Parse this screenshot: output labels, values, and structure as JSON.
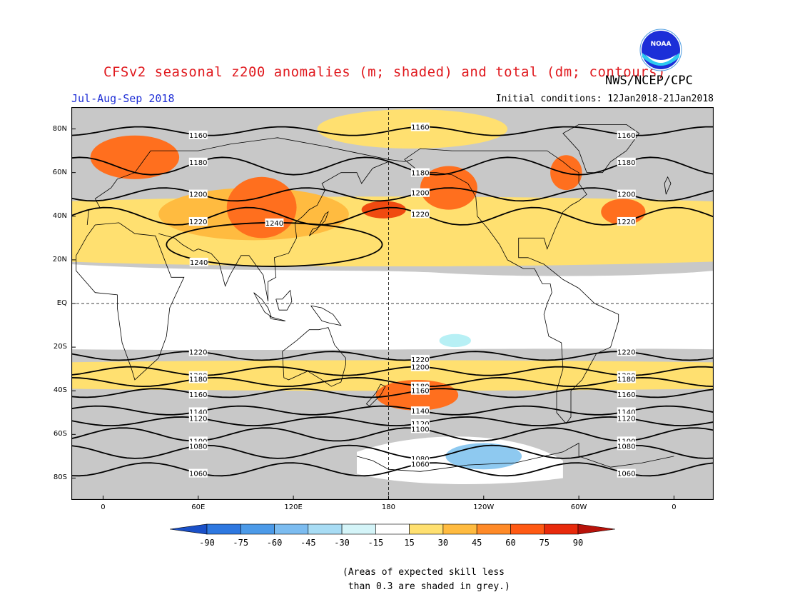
{
  "header": {
    "title": "CFSv2 seasonal z200 anomalies (m; shaded) and total (dm; contours)",
    "agency": "NWS/NCEP/CPC",
    "season": "Jul-Aug-Sep 2018",
    "initial_conditions": "Initial conditions: 12Jan2018-21Jan2018",
    "logo_text": "NOAA"
  },
  "colors": {
    "title": "#e0191e",
    "season": "#1f2fd6",
    "skill_mask": "#c8c8c8",
    "frame": "#000000"
  },
  "map": {
    "projection": "cylindrical-equidistant",
    "lon_range": [
      -20,
      385
    ],
    "lat_range": [
      -90,
      90
    ],
    "lat_labels": [
      "80N",
      "60N",
      "40N",
      "20N",
      "EQ",
      "20S",
      "40S",
      "60S",
      "80S"
    ],
    "lon_labels": [
      "0",
      "60E",
      "120E",
      "180",
      "120W",
      "60W",
      "0"
    ],
    "anomaly_regions": [
      {
        "level": "15-30",
        "color": "#ffe070",
        "name": "northern-subtropical-band",
        "center": [
          180,
          33
        ],
        "span": [
          405,
          16
        ]
      },
      {
        "level": "15-30",
        "color": "#ffe070",
        "name": "north-atlantic-arctic",
        "center": [
          195,
          80
        ],
        "span": [
          60,
          9
        ]
      },
      {
        "level": "30-45",
        "color": "#ffbb40",
        "name": "mid-latitude-ridge-asia",
        "center": [
          95,
          41
        ],
        "span": [
          60,
          12
        ]
      },
      {
        "level": "45-60",
        "color": "#ff6f1e",
        "name": "europe-ridge",
        "center": [
          20,
          67
        ],
        "span": [
          28,
          10
        ]
      },
      {
        "level": "45-60",
        "color": "#ff6f1e",
        "name": "central-asia-ridge",
        "center": [
          100,
          44
        ],
        "span": [
          22,
          14
        ]
      },
      {
        "level": "60-75",
        "color": "#f04a10",
        "name": "dateline-ridge",
        "center": [
          177,
          43
        ],
        "span": [
          14,
          4
        ]
      },
      {
        "level": "45-60",
        "color": "#ff6f1e",
        "name": "alaska-ridge",
        "center": [
          218,
          53
        ],
        "span": [
          18,
          10
        ]
      },
      {
        "level": "45-60",
        "color": "#ff6f1e",
        "name": "canada-ridge",
        "center": [
          292,
          60
        ],
        "span": [
          10,
          8
        ]
      },
      {
        "level": "45-60",
        "color": "#ff6f1e",
        "name": "north-atlantic-ridge",
        "center": [
          328,
          42
        ],
        "span": [
          14,
          6
        ]
      },
      {
        "level": "15-30",
        "color": "#ffe070",
        "name": "southern-mid-latitude-band",
        "center": [
          180,
          -33
        ],
        "span": [
          405,
          7
        ]
      },
      {
        "level": "45-60",
        "color": "#ff6f1e",
        "name": "south-pacific-ridge",
        "center": [
          198,
          -42
        ],
        "span": [
          26,
          7
        ]
      },
      {
        "level": "-30--15",
        "color": "#b7f0f5",
        "name": "tropical-pacific-low",
        "center": [
          222,
          -17
        ],
        "span": [
          10,
          3
        ]
      },
      {
        "level": "-45--30",
        "color": "#8ec9f0",
        "name": "antarctic-low",
        "center": [
          240,
          -70
        ],
        "span": [
          24,
          6
        ]
      }
    ],
    "contours": [
      {
        "label": "1160",
        "lat": 79,
        "amp": 2
      },
      {
        "label": "1180",
        "lat": 63,
        "amp": 4
      },
      {
        "label": "1200",
        "lat": 50,
        "amp": 3
      },
      {
        "label": "1220",
        "lat": 40,
        "amp": 4
      },
      {
        "label": "1220",
        "lat": -24,
        "amp": 2
      },
      {
        "label": "1200",
        "lat": -31,
        "amp": 2
      },
      {
        "label": "1180",
        "lat": -36,
        "amp": 2
      },
      {
        "label": "1160",
        "lat": -41,
        "amp": 2
      },
      {
        "label": "1140",
        "lat": -49,
        "amp": 2
      },
      {
        "label": "1120",
        "lat": -54,
        "amp": 2
      },
      {
        "label": "1100",
        "lat": -60,
        "amp": 3
      },
      {
        "label": "1080",
        "lat": -68,
        "amp": 3
      },
      {
        "label": "1060",
        "lat": -76,
        "amp": 3
      }
    ],
    "closed_contour": {
      "label": "1240",
      "center": [
        108,
        27
      ],
      "radii": [
        68,
        10
      ]
    }
  },
  "colorbar": {
    "tick_labels": [
      "-90",
      "-75",
      "-60",
      "-45",
      "-30",
      "-15",
      "15",
      "30",
      "45",
      "60",
      "75",
      "90"
    ],
    "colors": [
      "#1a50c8",
      "#2e78e0",
      "#4c9ae8",
      "#7cbcf0",
      "#a8dcf4",
      "#d4f4f8",
      "#ffffff",
      "#ffe070",
      "#ffbb40",
      "#ff8a28",
      "#ff5a14",
      "#e82a0c",
      "#b8120a"
    ]
  },
  "note": "(Areas of expected skill less\n than 0.3 are shaded in grey.)"
}
